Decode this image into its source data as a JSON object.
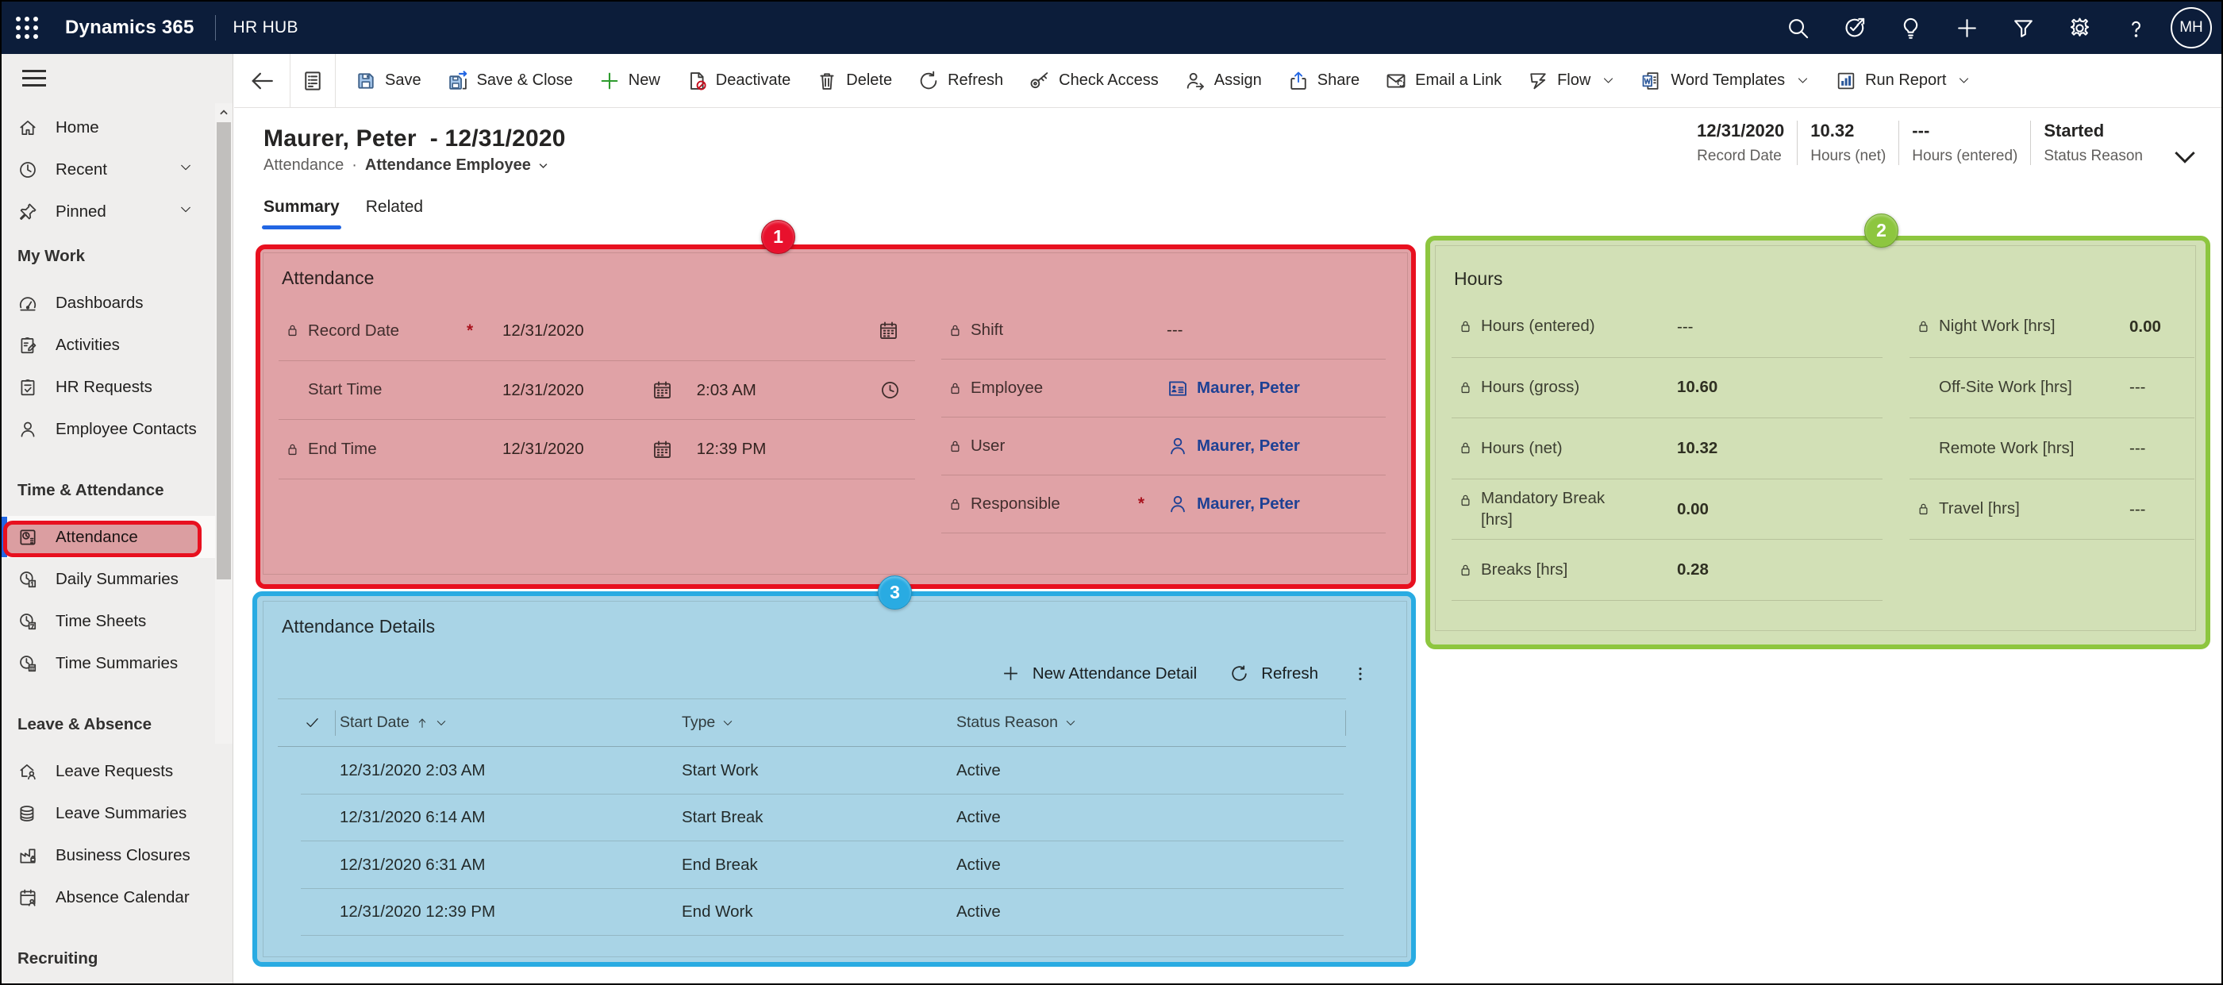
{
  "topbar": {
    "brand": "Dynamics 365",
    "app_name": "HR HUB",
    "avatar_initials": "MH",
    "icons": [
      "search-icon",
      "goal-check-icon",
      "lightbulb-icon",
      "plus-icon",
      "filter-icon",
      "gear-icon",
      "help-icon"
    ]
  },
  "sidebar": {
    "groups": [
      {
        "header": null,
        "items": [
          {
            "label": "Home",
            "icon": "home"
          },
          {
            "label": "Recent",
            "icon": "clock",
            "chevron": true
          },
          {
            "label": "Pinned",
            "icon": "pin",
            "chevron": true
          }
        ]
      },
      {
        "header": "My Work",
        "items": [
          {
            "label": "Dashboards",
            "icon": "gauge"
          },
          {
            "label": "Activities",
            "icon": "clipboard-pencil"
          },
          {
            "label": "HR Requests",
            "icon": "clipboard-check"
          },
          {
            "label": "Employee Contacts",
            "icon": "person"
          }
        ]
      },
      {
        "header": "Time & Attendance",
        "items": [
          {
            "label": "Attendance",
            "icon": "clock-doc",
            "selected": true
          },
          {
            "label": "Daily Summaries",
            "icon": "clock-1"
          },
          {
            "label": "Time Sheets",
            "icon": "clock-7"
          },
          {
            "label": "Time Summaries",
            "icon": "clock-cal"
          }
        ]
      },
      {
        "header": "Leave & Absence",
        "items": [
          {
            "label": "Leave Requests",
            "icon": "house-person"
          },
          {
            "label": "Leave Summaries",
            "icon": "coins"
          },
          {
            "label": "Business Closures",
            "icon": "factory-lock"
          },
          {
            "label": "Absence Calendar",
            "icon": "cal-person"
          }
        ]
      },
      {
        "header": "Recruiting",
        "items": []
      }
    ]
  },
  "command_bar": {
    "items": [
      {
        "label": "Save",
        "icon": "save"
      },
      {
        "label": "Save & Close",
        "icon": "save-close"
      },
      {
        "label": "New",
        "icon": "plus-green"
      },
      {
        "label": "Deactivate",
        "icon": "deactivate"
      },
      {
        "label": "Delete",
        "icon": "trash"
      },
      {
        "label": "Refresh",
        "icon": "refresh"
      },
      {
        "label": "Check Access",
        "icon": "key"
      },
      {
        "label": "Assign",
        "icon": "assign"
      },
      {
        "label": "Share",
        "icon": "share"
      },
      {
        "label": "Email a Link",
        "icon": "email"
      },
      {
        "label": "Flow",
        "icon": "flow",
        "chevron": true
      },
      {
        "label": "Word Templates",
        "icon": "word",
        "chevron": true
      },
      {
        "label": "Run Report",
        "icon": "report",
        "chevron": true
      }
    ]
  },
  "record_header": {
    "title": "Maurer, Peter  - 12/31/2020",
    "entity": "Attendance",
    "subtitle_separator": "·",
    "form_name": "Attendance Employee",
    "stats": [
      {
        "value": "12/31/2020",
        "label": "Record Date"
      },
      {
        "value": "10.32",
        "label": "Hours (net)"
      },
      {
        "value": "---",
        "label": "Hours (entered)"
      },
      {
        "value": "Started",
        "label": "Status Reason"
      }
    ],
    "tabs": [
      {
        "label": "Summary",
        "active": true
      },
      {
        "label": "Related",
        "active": false
      }
    ]
  },
  "attendance_section": {
    "title": "Attendance",
    "left_fields": [
      {
        "label": "Record Date",
        "locked": true,
        "required": true,
        "date": "12/31/2020",
        "date_icon": "calendar",
        "wide": true
      },
      {
        "label": "Start Time",
        "locked": false,
        "date": "12/31/2020",
        "date_icon": "calendar",
        "time": "2:03 AM",
        "time_icon": "clock-small"
      },
      {
        "label": "End Time",
        "locked": true,
        "date": "12/31/2020",
        "date_icon": "calendar",
        "time": "12:39 PM"
      },
      {
        "label": "",
        "empty": true
      }
    ],
    "right_fields": [
      {
        "label": "Shift",
        "locked": true,
        "value": "---"
      },
      {
        "label": "Employee",
        "locked": true,
        "link": "Maurer, Peter",
        "link_icon": "contact-card"
      },
      {
        "label": "User",
        "locked": true,
        "link": "Maurer, Peter",
        "link_icon": "person-small"
      },
      {
        "label": "Responsible",
        "locked": true,
        "required": true,
        "link": "Maurer, Peter",
        "link_icon": "person-small"
      }
    ]
  },
  "hours_section": {
    "title": "Hours",
    "left_fields": [
      {
        "label": "Hours (entered)",
        "locked": true,
        "value": "---"
      },
      {
        "label": "Hours (gross)",
        "locked": true,
        "value": "10.60",
        "bold": true
      },
      {
        "label": "Hours (net)",
        "locked": true,
        "value": "10.32",
        "bold": true
      },
      {
        "label": "Mandatory Break [hrs]",
        "locked": true,
        "value": "0.00",
        "bold": true,
        "wrap": true
      },
      {
        "label": "Breaks [hrs]",
        "locked": true,
        "value": "0.28",
        "bold": true
      }
    ],
    "right_fields": [
      {
        "label": "Night Work [hrs]",
        "locked": true,
        "value": "0.00",
        "bold": true
      },
      {
        "label": "Off-Site Work [hrs]",
        "locked": false,
        "value": "---"
      },
      {
        "label": "Remote Work [hrs]",
        "locked": false,
        "value": "---"
      },
      {
        "label": "Travel [hrs]",
        "locked": true,
        "value": "---"
      }
    ]
  },
  "details_section": {
    "title": "Attendance Details",
    "toolbar": {
      "new_label": "New Attendance Detail",
      "refresh_label": "Refresh"
    },
    "columns": [
      {
        "label": "Start Date",
        "sorted": true
      },
      {
        "label": "Type"
      },
      {
        "label": "Status Reason"
      }
    ],
    "rows": [
      {
        "start_date": "12/31/2020 2:03 AM",
        "type": "Start Work",
        "status": "Active"
      },
      {
        "start_date": "12/31/2020 6:14 AM",
        "type": "Start Break",
        "status": "Active"
      },
      {
        "start_date": "12/31/2020 6:31 AM",
        "type": "End Break",
        "status": "Active"
      },
      {
        "start_date": "12/31/2020 12:39 PM",
        "type": "End Work",
        "status": "Active"
      }
    ]
  },
  "annotations": [
    {
      "number": "1",
      "color": "red"
    },
    {
      "number": "2",
      "color": "green"
    },
    {
      "number": "3",
      "color": "blue"
    }
  ]
}
